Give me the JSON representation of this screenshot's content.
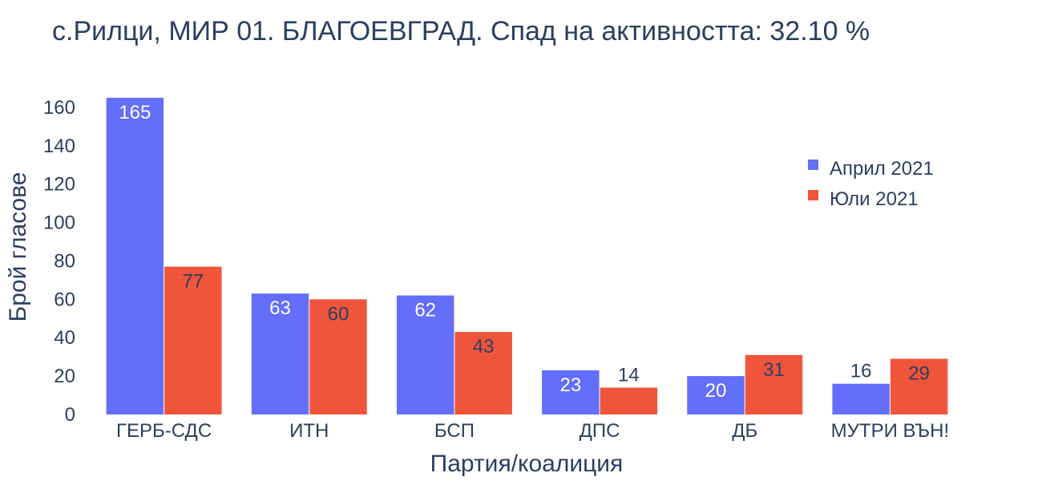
{
  "chart_data": {
    "type": "bar",
    "title": "с.Рилци, МИР 01. БЛАГОЕВГРАД. Спад на активността: 32.10 %",
    "xlabel": "Партия/коалиция",
    "ylabel": "Брой гласове",
    "categories": [
      "ГЕРБ-СДС",
      "ИТН",
      "БСП",
      "ДПС",
      "ДБ",
      "МУТРИ ВЪН!"
    ],
    "series": [
      {
        "name": "Април 2021",
        "color": "#636efa",
        "values": [
          165,
          63,
          62,
          23,
          20,
          16
        ]
      },
      {
        "name": "Юли 2021",
        "color": "#ef553b",
        "values": [
          77,
          60,
          43,
          14,
          31,
          29
        ]
      }
    ],
    "ylim": [
      0,
      170
    ],
    "yticks": [
      0,
      20,
      40,
      60,
      80,
      100,
      120,
      140,
      160
    ],
    "grid": false,
    "legend_position": "top-right"
  }
}
